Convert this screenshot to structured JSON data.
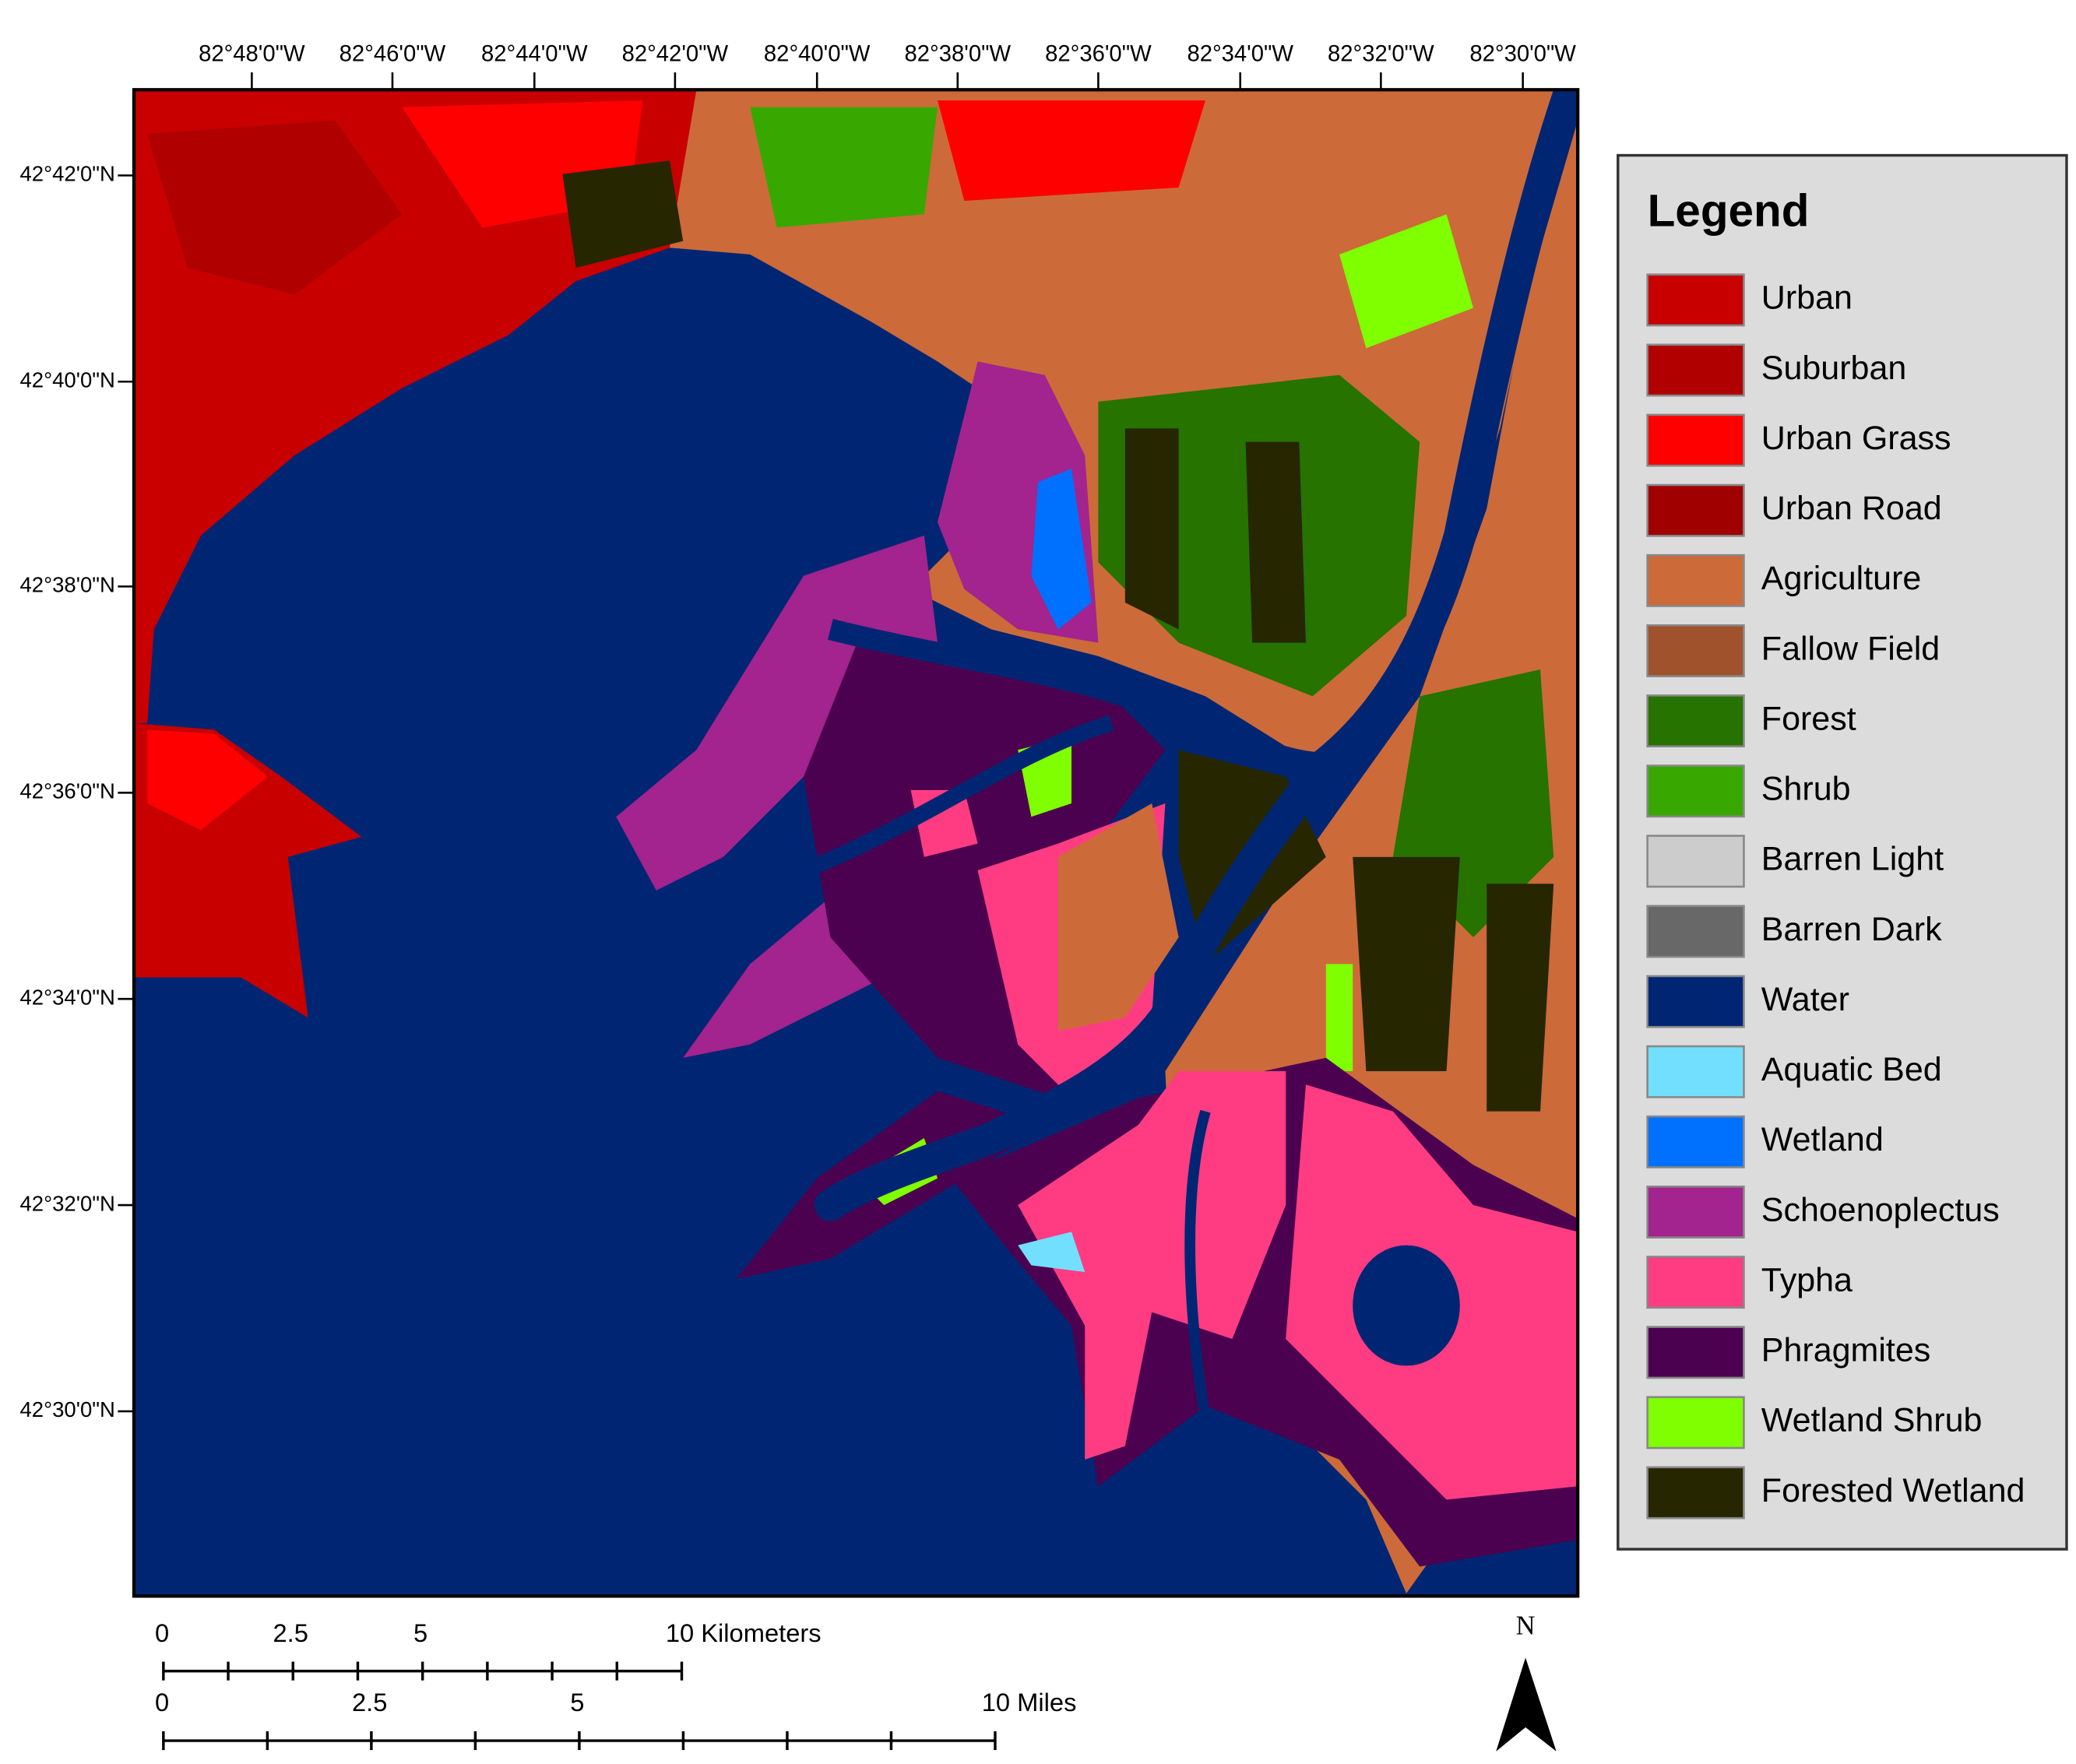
{
  "map": {
    "longitude_labels": [
      "82°48'0\"W",
      "82°46'0\"W",
      "82°44'0\"W",
      "82°42'0\"W",
      "82°40'0\"W",
      "82°38'0\"W",
      "82°36'0\"W",
      "82°34'0\"W",
      "82°32'0\"W",
      "82°30'0\"W"
    ],
    "latitude_labels": [
      "42°42'0\"N",
      "42°40'0\"N",
      "42°38'0\"N",
      "42°36'0\"N",
      "42°34'0\"N",
      "42°32'0\"N",
      "42°30'0\"N"
    ],
    "legend": {
      "title": "Legend",
      "items": [
        {
          "label": "Urban",
          "color": "#c80000"
        },
        {
          "label": "Suburban",
          "color": "#b00000"
        },
        {
          "label": "Urban Grass",
          "color": "#ff0000"
        },
        {
          "label": "Urban Road",
          "color": "#a00000"
        },
        {
          "label": "Agriculture",
          "color": "#cd6a3a"
        },
        {
          "label": "Fallow Field",
          "color": "#a0522d"
        },
        {
          "label": "Forest",
          "color": "#267300"
        },
        {
          "label": "Shrub",
          "color": "#38a800"
        },
        {
          "label": "Barren Light",
          "color": "#cccccc"
        },
        {
          "label": "Barren Dark",
          "color": "#686868"
        },
        {
          "label": "Water",
          "color": "#002673"
        },
        {
          "label": "Aquatic Bed",
          "color": "#73dfff"
        },
        {
          "label": "Wetland",
          "color": "#0070ff"
        },
        {
          "label": "Schoenoplectus",
          "color": "#a3238f"
        },
        {
          "label": "Typha",
          "color": "#ff3c82"
        },
        {
          "label": "Phragmites",
          "color": "#4c0050"
        },
        {
          "label": "Wetland Shrub",
          "color": "#7fff00"
        },
        {
          "label": "Forested Wetland",
          "color": "#262600"
        }
      ]
    },
    "scale_km": [
      "0",
      "2.5",
      "5",
      "10 Kilometers"
    ],
    "scale_miles": [
      "0",
      "2.5",
      "5",
      "10 Miles"
    ],
    "north": "N"
  }
}
